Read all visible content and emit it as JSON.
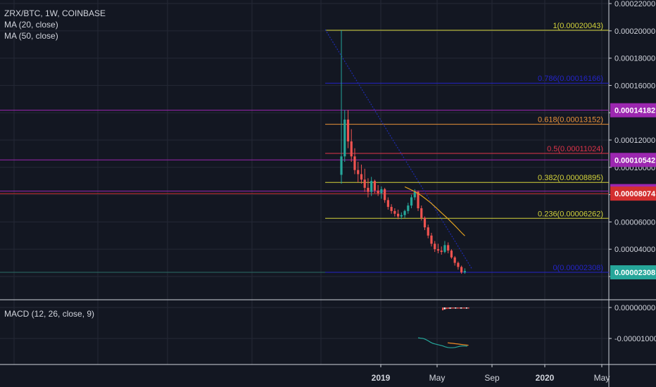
{
  "header": {
    "symbol_line": "ZRX/BTC, 1W, COINBASE",
    "indicators": [
      "MA (20, close)",
      "MA (50, close)"
    ]
  },
  "macd_label": "MACD (12, 26, close, 9)",
  "colors": {
    "background": "#131722",
    "up_candle": "#26a69a",
    "down_candle": "#ef5350",
    "ma20": "#e0a020",
    "ma50": "#1e2bb0",
    "macd_line": "#26a69a",
    "signal_line": "#f08a24",
    "level_purple": "#9c27b0",
    "level_red": "#d32f2f",
    "level_teal": "#26a69a"
  },
  "chart_data": {
    "type": "candlestick",
    "title": "ZRX/BTC, 1W, COINBASE",
    "y_ticks": [
      "0.00022000",
      "0.00020000",
      "0.00018000",
      "0.00016000",
      "0.00014000",
      "0.00012000",
      "0.00010000",
      "0.00008000",
      "0.00006000",
      "0.00004000",
      "0.00002000"
    ],
    "x_ticks": [
      "2019",
      "May",
      "Sep",
      "2020",
      "May"
    ],
    "ylim": [
      1.7e-05,
      0.00022
    ],
    "fib_levels": [
      {
        "label": "1(0.00020043)",
        "value": 0.00020043,
        "color": "#d4d43a"
      },
      {
        "label": "0.786(0.00016166)",
        "value": 0.00016166,
        "color": "#2424c8"
      },
      {
        "label": "0.618(0.00013152)",
        "value": 0.00013152,
        "color": "#e8923a"
      },
      {
        "label": "0.5(0.00011024)",
        "value": 0.00011024,
        "color": "#e0344a"
      },
      {
        "label": "0.382(0.00008895)",
        "value": 8.895e-05,
        "color": "#d4d43a"
      },
      {
        "label": "0.236(0.00006262)",
        "value": 6.262e-05,
        "color": "#d4d43a"
      },
      {
        "label": "0(0.00002308)",
        "value": 2.308e-05,
        "color": "#2424c8"
      }
    ],
    "price_tags": [
      {
        "label": "0.00014182",
        "value": 0.00014182,
        "color": "#9c27b0"
      },
      {
        "label": "0.00010542",
        "value": 0.00010542,
        "color": "#9c27b0"
      },
      {
        "label": "0.00008259",
        "value": 8.259e-05,
        "color": "#9c27b0"
      },
      {
        "label": "0.00008074",
        "value": 8.074e-05,
        "color": "#d32f2f"
      },
      {
        "label": "0.00002308",
        "value": 2.308e-05,
        "color": "#26a69a"
      }
    ],
    "candles": [
      {
        "o": 9.45e-05,
        "h": 0.00020043,
        "l": 8.8e-05,
        "c": 0.000108
      },
      {
        "o": 0.000108,
        "h": 0.000142,
        "l": 0.000104,
        "c": 0.000135
      },
      {
        "o": 0.000135,
        "h": 0.000142,
        "l": 0.000114,
        "c": 0.000119
      },
      {
        "o": 0.000119,
        "h": 0.000128,
        "l": 0.000104,
        "c": 0.000108
      },
      {
        "o": 0.000108,
        "h": 0.000114,
        "l": 9.5e-05,
        "c": 9.8e-05
      },
      {
        "o": 9.8e-05,
        "h": 0.000104,
        "l": 8.9e-05,
        "c": 9.5e-05
      },
      {
        "o": 9.5e-05,
        "h": 0.000102,
        "l": 8.8e-05,
        "c": 9.1e-05
      },
      {
        "o": 9.1e-05,
        "h": 9.9e-05,
        "l": 8.2e-05,
        "c": 8.5e-05
      },
      {
        "o": 8.5e-05,
        "h": 9.2e-05,
        "l": 7.8e-05,
        "c": 8.2e-05
      },
      {
        "o": 8.2e-05,
        "h": 9.3e-05,
        "l": 7.9e-05,
        "c": 9e-05
      },
      {
        "o": 9e-05,
        "h": 9.1e-05,
        "l": 8.1e-05,
        "c": 8.3e-05
      },
      {
        "o": 8.3e-05,
        "h": 8.7e-05,
        "l": 7.9e-05,
        "c": 8.1e-05
      },
      {
        "o": 8.1e-05,
        "h": 8.6e-05,
        "l": 7.7e-05,
        "c": 8.4e-05
      },
      {
        "o": 8.4e-05,
        "h": 8.5e-05,
        "l": 7.4e-05,
        "c": 7.6e-05
      },
      {
        "o": 7.6e-05,
        "h": 7.8e-05,
        "l": 6.9e-05,
        "c": 7.1e-05
      },
      {
        "o": 7.1e-05,
        "h": 7.3e-05,
        "l": 6.6e-05,
        "c": 6.8e-05
      },
      {
        "o": 6.8e-05,
        "h": 7e-05,
        "l": 6.4e-05,
        "c": 6.6e-05
      },
      {
        "o": 6.6e-05,
        "h": 6.9e-05,
        "l": 6.2e-05,
        "c": 6.4e-05
      },
      {
        "o": 6.4e-05,
        "h": 6.7e-05,
        "l": 6.2e-05,
        "c": 6.5e-05
      },
      {
        "o": 6.5e-05,
        "h": 6.9e-05,
        "l": 6.3e-05,
        "c": 6.8e-05
      },
      {
        "o": 6.8e-05,
        "h": 7.4e-05,
        "l": 6.6e-05,
        "c": 7.2e-05
      },
      {
        "o": 7.2e-05,
        "h": 8e-05,
        "l": 7e-05,
        "c": 7.8e-05
      },
      {
        "o": 7.8e-05,
        "h": 8.4e-05,
        "l": 7.6e-05,
        "c": 8.2e-05
      },
      {
        "o": 8.2e-05,
        "h": 8.3e-05,
        "l": 6.8e-05,
        "c": 7e-05
      },
      {
        "o": 7e-05,
        "h": 7.2e-05,
        "l": 6.1e-05,
        "c": 6.3e-05
      },
      {
        "o": 6.3e-05,
        "h": 6.4e-05,
        "l": 5.4e-05,
        "c": 5.6e-05
      },
      {
        "o": 5.6e-05,
        "h": 5.8e-05,
        "l": 4.8e-05,
        "c": 5e-05
      },
      {
        "o": 5e-05,
        "h": 5.2e-05,
        "l": 4.2e-05,
        "c": 4.4e-05
      },
      {
        "o": 4.4e-05,
        "h": 4.6e-05,
        "l": 3.8e-05,
        "c": 4e-05
      },
      {
        "o": 4e-05,
        "h": 4.4e-05,
        "l": 3.7e-05,
        "c": 3.9e-05
      },
      {
        "o": 3.9e-05,
        "h": 4.2e-05,
        "l": 3.6e-05,
        "c": 3.8e-05
      },
      {
        "o": 3.8e-05,
        "h": 4.6e-05,
        "l": 3.7e-05,
        "c": 4.3e-05
      },
      {
        "o": 4.3e-05,
        "h": 4.5e-05,
        "l": 3.7e-05,
        "c": 3.9e-05
      },
      {
        "o": 3.9e-05,
        "h": 4e-05,
        "l": 3.3e-05,
        "c": 3.4e-05
      },
      {
        "o": 3.4e-05,
        "h": 3.5e-05,
        "l": 2.8e-05,
        "c": 3e-05
      },
      {
        "o": 3e-05,
        "h": 3.1e-05,
        "l": 2.5e-05,
        "c": 2.7e-05
      },
      {
        "o": 2.7e-05,
        "h": 2.8e-05,
        "l": 2.2e-05,
        "c": 2.3e-05
      },
      {
        "o": 2.3e-05,
        "h": 2.6e-05,
        "l": 2.2e-05,
        "c": 2.4e-05
      }
    ],
    "ma20": [
      null,
      null,
      null,
      null,
      null,
      null,
      null,
      null,
      null,
      null,
      null,
      null,
      null,
      null,
      null,
      null,
      null,
      null,
      null,
      8.57e-05,
      8.46e-05,
      8.34e-05,
      8.22e-05,
      8.08e-05,
      7.92e-05,
      7.74e-05,
      7.55e-05,
      7.35e-05,
      7.13e-05,
      6.9e-05,
      6.67e-05,
      6.45e-05,
      6.22e-05,
      5.98e-05,
      5.73e-05,
      5.48e-05,
      5.22e-05,
      4.98e-05
    ],
    "ma50_projection": [
      0.000201,
      2.6e-05
    ],
    "macd_ticks": [
      "0.00000000",
      "-0.00001000"
    ],
    "macd_ylim": [
      -1.75e-05,
      1.7e-06
    ],
    "macd_histogram": [
      -9e-07,
      -6e-07,
      -5e-07,
      -4e-07,
      -4e-07,
      -3e-07,
      -3e-07,
      -3e-07,
      -3e-07,
      -2e-07,
      -2e-07,
      -2e-07,
      -2e-07,
      -2e-07,
      -1e-07
    ],
    "macd_line": [
      -9.8e-06,
      -9.9e-06,
      -1e-05,
      -1.03e-05,
      -1.07e-05,
      -1.12e-05,
      -1.16e-05,
      -1.18e-05,
      -1.2e-05,
      -1.22e-05,
      -1.24e-05,
      -1.27e-05,
      -1.29e-05,
      -1.3e-05,
      -1.3e-05,
      -1.29e-05,
      -1.27e-05,
      -1.25e-05,
      -1.24e-05,
      -1.24e-05,
      -1.25e-05
    ],
    "signal_line": [
      -1.14e-05,
      -1.15e-05,
      -1.16e-05,
      -1.17e-05,
      -1.18e-05,
      -1.19e-05,
      -1.2e-05,
      -1.21e-05,
      -1.22e-05
    ]
  }
}
